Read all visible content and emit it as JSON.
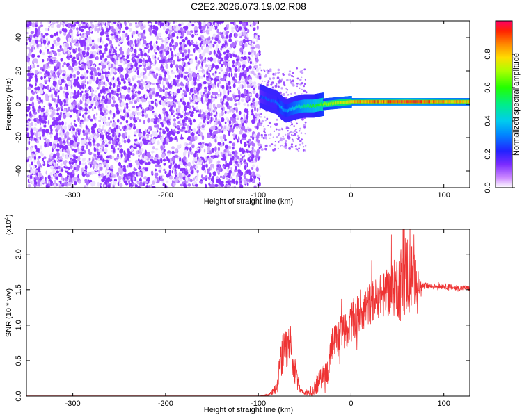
{
  "figure_title": "C2E2.2026.073.19.02.R08",
  "chart_data": [
    {
      "type": "heatmap",
      "name": "spectrogram",
      "xlabel": "Height of straight line (km)",
      "ylabel": "Frequency (Hz)",
      "xlim": [
        -350,
        128
      ],
      "ylim": [
        -50,
        50
      ],
      "xticks": [
        -300,
        -200,
        -100,
        0,
        100
      ],
      "yticks": [
        -40,
        -20,
        0,
        20,
        40
      ],
      "noise_region": {
        "x": [
          -350,
          -98
        ],
        "description_level": "low amplitude broadband"
      },
      "signal_track": {
        "x": [
          -98,
          -90,
          -80,
          -75,
          -70,
          -60,
          -50,
          -40,
          -30,
          -20,
          -10,
          0,
          20,
          40,
          60,
          80,
          100,
          128
        ],
        "freq": [
          5,
          3,
          1,
          -2,
          -4,
          -2,
          -1,
          -1,
          0,
          0.5,
          1,
          1.5,
          1.5,
          1.5,
          1.5,
          1.5,
          1.5,
          1.5
        ],
        "amplitude": [
          0.25,
          0.3,
          0.3,
          0.4,
          0.35,
          0.45,
          0.55,
          0.6,
          0.7,
          0.75,
          0.8,
          0.85,
          0.95,
          0.95,
          1.0,
          0.95,
          0.9,
          0.85
        ]
      },
      "colorbar": {
        "label": "Normalized spectral amplitude",
        "range": [
          0,
          1
        ],
        "ticks": [
          0.0,
          0.2,
          0.4,
          0.6,
          0.8
        ],
        "tick_labels": [
          "0.0",
          "0.2",
          "0.4",
          "0.6",
          "0.8"
        ]
      }
    },
    {
      "type": "line",
      "name": "snr",
      "xlabel": "Height of straight line (km)",
      "ylabel": "SNR (10 * v/v)",
      "scale_label": "(x10",
      "scale_exponent": "4",
      "xlim": [
        -350,
        128
      ],
      "ylim": [
        0,
        2.35
      ],
      "xticks": [
        -300,
        -200,
        -100,
        0,
        100
      ],
      "yticks": [
        0.0,
        0.5,
        1.0,
        1.5,
        2.0
      ],
      "ytick_labels": [
        "0.0",
        "0.5",
        "1.0",
        "1.5",
        "2.0"
      ],
      "series": [
        {
          "name": "SNR",
          "color": "#ee3333",
          "x": [
            -350,
            -100,
            -88,
            -80,
            -75,
            -70,
            -65,
            -60,
            -55,
            -50,
            -45,
            -40,
            -35,
            -30,
            -25,
            -20,
            -15,
            -10,
            -5,
            0,
            5,
            10,
            20,
            30,
            40,
            50,
            55,
            60,
            65,
            70,
            75,
            80,
            90,
            100,
            110,
            128
          ],
          "y": [
            0.0,
            0.0,
            0.02,
            0.12,
            0.55,
            0.6,
            0.7,
            0.3,
            0.1,
            0.05,
            0.05,
            0.1,
            0.2,
            0.3,
            0.35,
            0.75,
            0.8,
            0.95,
            0.9,
            1.05,
            1.1,
            1.2,
            1.3,
            1.4,
            1.45,
            1.55,
            1.6,
            1.75,
            1.7,
            1.6,
            1.55,
            1.55,
            1.55,
            1.55,
            1.53,
            1.52
          ],
          "noise_amplitude": [
            0.0,
            0.0,
            0.02,
            0.1,
            0.3,
            0.35,
            0.35,
            0.2,
            0.05,
            0.05,
            0.05,
            0.1,
            0.15,
            0.15,
            0.2,
            0.25,
            0.25,
            0.25,
            0.25,
            0.3,
            0.3,
            0.3,
            0.3,
            0.3,
            0.35,
            0.45,
            0.6,
            0.6,
            0.5,
            0.3,
            0.08,
            0.05,
            0.04,
            0.04,
            0.04,
            0.04
          ]
        }
      ]
    }
  ]
}
